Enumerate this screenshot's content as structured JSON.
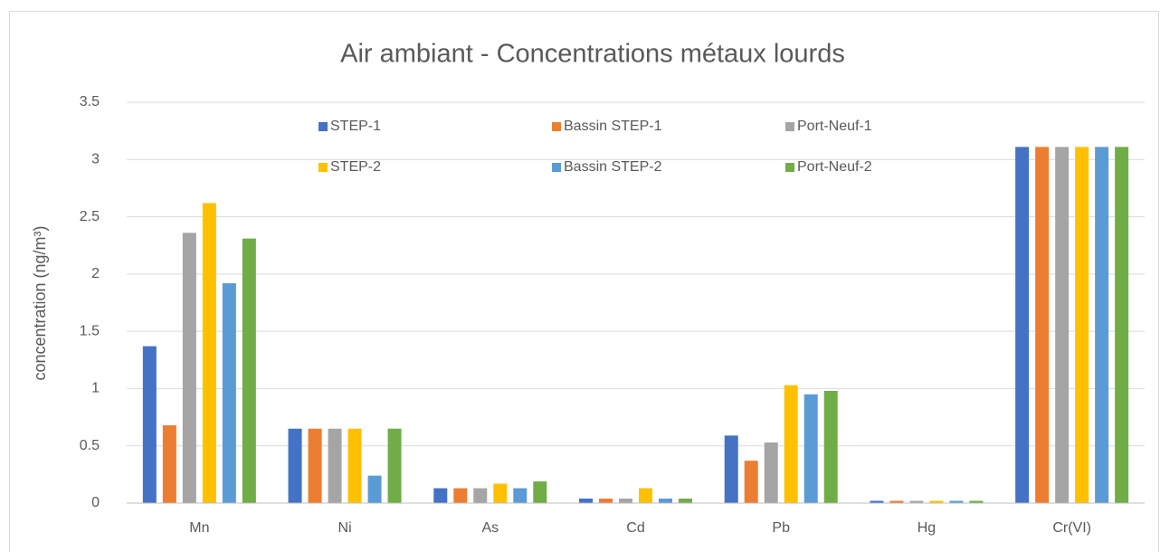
{
  "chart_data": {
    "type": "bar",
    "title": "Air ambiant - Concentrations métaux lourds",
    "y_label": "concentration (ng/m³)",
    "categories": [
      "Mn",
      "Ni",
      "As",
      "Cd",
      "Pb",
      "Hg",
      "Cr(VI)"
    ],
    "series": [
      {
        "name": "STEP-1",
        "color": "#4472c4",
        "values": [
          1.37,
          0.65,
          0.13,
          0.04,
          0.59,
          0.02,
          3.11
        ]
      },
      {
        "name": "Bassin STEP-1",
        "color": "#ed7d31",
        "values": [
          0.68,
          0.65,
          0.13,
          0.04,
          0.37,
          0.02,
          3.11
        ]
      },
      {
        "name": "Port-Neuf-1",
        "color": "#a5a5a5",
        "values": [
          2.36,
          0.65,
          0.13,
          0.04,
          0.53,
          0.02,
          3.11
        ]
      },
      {
        "name": "STEP-2",
        "color": "#ffc000",
        "values": [
          2.62,
          0.65,
          0.17,
          0.13,
          1.03,
          0.02,
          3.11
        ]
      },
      {
        "name": "Bassin STEP-2",
        "color": "#5b9bd5",
        "values": [
          1.92,
          0.24,
          0.13,
          0.04,
          0.95,
          0.02,
          3.11
        ]
      },
      {
        "name": "Port-Neuf-2",
        "color": "#70ad47",
        "values": [
          2.31,
          0.65,
          0.19,
          0.04,
          0.98,
          0.02,
          3.11
        ]
      }
    ],
    "ylim": [
      0,
      3.5
    ],
    "yticks": [
      0,
      0.5,
      1,
      1.5,
      2,
      2.5,
      3,
      3.5
    ],
    "grid": true,
    "legend": "top"
  }
}
